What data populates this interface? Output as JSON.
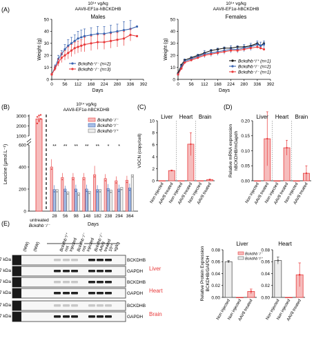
{
  "panel_labels": {
    "A": "(A)",
    "B": "(B)",
    "C": "(C)",
    "D": "(D)",
    "E": "(E)"
  },
  "colors": {
    "red": "#e8393a",
    "blue": "#3a64b0",
    "black": "#111111",
    "light_red": "#f6bcbc",
    "light_gray": "#eeeeee",
    "light_blue": "#a9bfe6",
    "divider": "#888888"
  },
  "texts": {
    "A_dose": "10¹⁴ vg/kg",
    "A_vector": "AAV8-EF1α-hBCKDHB",
    "A_vector_italic": "BCKDHB",
    "B_dose": "10¹⁴ vg/kg",
    "B_vector": "AAV8-EF1α-hBCKDHB",
    "untreated_line1": "untreated",
    "untreated_line2": "Bckdhb⁻/⁻"
  },
  "chart_data": [
    {
      "type": "line",
      "panel": "A-left",
      "title": "Males",
      "xlabel": "Days",
      "ylabel": "Weight (g)",
      "xlim": [
        0,
        392
      ],
      "ylim": [
        0,
        50
      ],
      "xticks": [
        0,
        56,
        112,
        168,
        224,
        280,
        336,
        392
      ],
      "yticks": [
        0,
        10,
        20,
        30,
        40,
        50
      ],
      "series": [
        {
          "name": "Bckdhb⁺/⁻ (n=2)",
          "color": "blue",
          "x": [
            0,
            14,
            28,
            42,
            56,
            70,
            84,
            98,
            112,
            126,
            140,
            168,
            196,
            224,
            252,
            280,
            308,
            336,
            364
          ],
          "y": [
            4,
            10,
            17,
            21,
            25,
            28,
            30,
            32,
            34,
            35,
            36,
            37,
            38,
            38,
            39,
            40,
            41,
            42,
            44
          ],
          "err": [
            1,
            2,
            3,
            3,
            4,
            5,
            5,
            5,
            6,
            6,
            6,
            6,
            6,
            6,
            6,
            6,
            7,
            7,
            0
          ]
        },
        {
          "name": "Bckdhb⁻/⁻ (n=3)",
          "color": "red",
          "x": [
            0,
            14,
            28,
            42,
            56,
            70,
            84,
            98,
            112,
            126,
            140,
            168,
            196,
            224,
            252,
            280,
            308,
            336,
            364
          ],
          "y": [
            4,
            9,
            14,
            18,
            20,
            22,
            24,
            26,
            27,
            28,
            29,
            30,
            31,
            31,
            32,
            33,
            34,
            37,
            36
          ],
          "err": [
            1,
            2,
            3,
            4,
            4,
            5,
            5,
            5,
            5,
            5,
            6,
            6,
            6,
            6,
            6,
            6,
            6,
            5,
            0
          ]
        }
      ]
    },
    {
      "type": "line",
      "panel": "A-right",
      "title": "Females",
      "xlabel": "Days",
      "ylabel": "Weight (g)",
      "xlim": [
        0,
        392
      ],
      "ylim": [
        0,
        50
      ],
      "xticks": [
        0,
        56,
        112,
        168,
        224,
        280,
        336,
        392
      ],
      "yticks": [
        0,
        10,
        20,
        30,
        40,
        50
      ],
      "series": [
        {
          "name": "Bckdhb⁺/⁺ (n=1)",
          "color": "black",
          "x": [
            0,
            14,
            28,
            56,
            84,
            112,
            140,
            168,
            196,
            224,
            252,
            280,
            308,
            336,
            350,
            364
          ],
          "y": [
            5,
            12,
            16,
            18,
            20,
            22,
            24,
            25,
            26,
            26,
            27,
            27,
            28,
            30,
            28,
            30
          ]
        },
        {
          "name": "Bckdhb⁺/⁻ (n=2)",
          "color": "blue",
          "x": [
            0,
            14,
            28,
            56,
            84,
            112,
            140,
            168,
            196,
            224,
            252,
            280,
            308,
            336,
            350,
            364
          ],
          "y": [
            4,
            10,
            15,
            17,
            19,
            21,
            22,
            23,
            24,
            25,
            25,
            26,
            27,
            29,
            28,
            29
          ],
          "err": [
            1,
            2,
            2,
            2,
            2,
            3,
            3,
            3,
            3,
            3,
            3,
            3,
            3,
            3,
            3,
            3
          ]
        },
        {
          "name": "Bckdhb⁻/⁻ (n=1)",
          "color": "red",
          "x": [
            0,
            14,
            28,
            56,
            84,
            112,
            140,
            168,
            196,
            224,
            252,
            280,
            308,
            336,
            350,
            364
          ],
          "y": [
            4,
            9,
            14,
            16,
            18,
            20,
            21,
            22,
            23,
            24,
            24,
            25,
            26,
            27,
            26,
            25
          ]
        }
      ]
    },
    {
      "type": "bar",
      "panel": "B",
      "xlabel": "Days",
      "ylabel": "Leucine (μmol.L⁻¹)",
      "yticks_upper": [
        3000,
        2000,
        1000
      ],
      "yticks_lower": [
        600,
        400,
        200,
        0
      ],
      "axis_break": [
        600,
        1000
      ],
      "untreated": {
        "name": "untreated Bckdhb⁻/⁻",
        "value": 2700,
        "err": 350,
        "points": [
          2250,
          2500,
          2700,
          2900,
          3050,
          3100
        ]
      },
      "categories": [
        "28",
        "56",
        "98",
        "148",
        "182",
        "238",
        "294",
        "364"
      ],
      "significance": [
        "**",
        "**",
        "**",
        "**",
        "**",
        "*",
        "*",
        ""
      ],
      "series": [
        {
          "name": "Bckdhb⁻/⁻",
          "color": "red",
          "values": [
            400,
            305,
            305,
            305,
            330,
            295,
            275,
            280
          ],
          "err": [
            70,
            40,
            40,
            40,
            80,
            40,
            40,
            40
          ]
        },
        {
          "name": "Bckdhb⁺/⁻",
          "color": "blue",
          "values": [
            195,
            200,
            200,
            200,
            195,
            205,
            200,
            210
          ],
          "err": [
            40,
            30,
            40,
            40,
            40,
            40,
            40,
            40
          ]
        },
        {
          "name": "Bckdhb⁺/⁺",
          "color": "gray",
          "values": [
            195,
            175,
            165,
            180,
            195,
            190,
            215,
            330
          ],
          "err": [
            0,
            0,
            0,
            0,
            0,
            0,
            0,
            0
          ]
        }
      ]
    },
    {
      "type": "bar",
      "panel": "C",
      "ylabel": "VGCN (copy/cell)",
      "ylim": [
        0,
        10
      ],
      "yticks": [
        0,
        2,
        4,
        6,
        8,
        10
      ],
      "groups": [
        "Liver",
        "Heart",
        "Brain"
      ],
      "categories": [
        "Non injected",
        "AAV8 treated",
        "Non injected",
        "AAV8 treated",
        "Non injected",
        "AAV8 treated"
      ],
      "values": [
        0.02,
        1.7,
        0.02,
        6.1,
        0.02,
        0.2
      ],
      "err": [
        0,
        0.1,
        0,
        1.9,
        0,
        0.05
      ]
    },
    {
      "type": "bar",
      "panel": "D",
      "ylabel": "Relative mRNA expression hBCKDHB/mGapdh",
      "ylim": [
        0,
        0.2
      ],
      "yticks": [
        0.0,
        0.05,
        0.1,
        0.15,
        0.2
      ],
      "groups": [
        "Liver",
        "Heart",
        "Brain"
      ],
      "categories": [
        "Non injected",
        "AAV8 treated",
        "Non injected",
        "AAV8 treated",
        "Non injected",
        "AAV8 treated"
      ],
      "values": [
        0.0,
        0.14,
        0.0,
        0.11,
        0.0,
        0.025
      ],
      "err": [
        0,
        0.09,
        0,
        0.025,
        0,
        0.025
      ]
    },
    {
      "type": "bar",
      "panel": "E-liver",
      "title": "Liver",
      "ylabel": "Relative Protein Expression BCKDHB/GAPDH",
      "ylim": [
        0,
        0.08
      ],
      "yticks": [
        0.0,
        0.02,
        0.04,
        0.06,
        0.08
      ],
      "legend": [
        "Bckdhb⁻/⁻",
        "Bckdhb⁺/⁺"
      ],
      "categories": [
        "Non injected",
        "Non injected",
        "AAV8 treated"
      ],
      "values": [
        0.06,
        0.0,
        0.01
      ],
      "err": [
        0.002,
        0,
        0.004
      ]
    },
    {
      "type": "bar",
      "panel": "E-heart",
      "title": "Heart",
      "ylim": [
        0,
        0.08
      ],
      "yticks": [
        0.0,
        0.02,
        0.04,
        0.06,
        0.08
      ],
      "categories": [
        "Non injected",
        "Non injected",
        "AAV8 treated"
      ],
      "values": [
        0.062,
        0.0,
        0.038
      ],
      "err": [
        0.006,
        0,
        0.02
      ]
    }
  ],
  "western_blot": {
    "kda_label": "37 kDa",
    "lane_headers": [
      "(MW)",
      "(MW)",
      "Bckdhb⁺/⁺ not injected",
      "Bckdhb⁻/⁻ not injected",
      "Bckdhb⁻/⁻ AAV8 treated 10¹⁴ vg/kg"
    ],
    "tissues": [
      {
        "tissue": "Liver",
        "proteins": [
          "BCKDHB",
          "GAPDH"
        ]
      },
      {
        "tissue": "Heart",
        "proteins": [
          "BCKDHB",
          "GAPDH"
        ]
      },
      {
        "tissue": "Brain",
        "proteins": [
          "BCKDHB",
          "GAPDH"
        ]
      }
    ]
  }
}
